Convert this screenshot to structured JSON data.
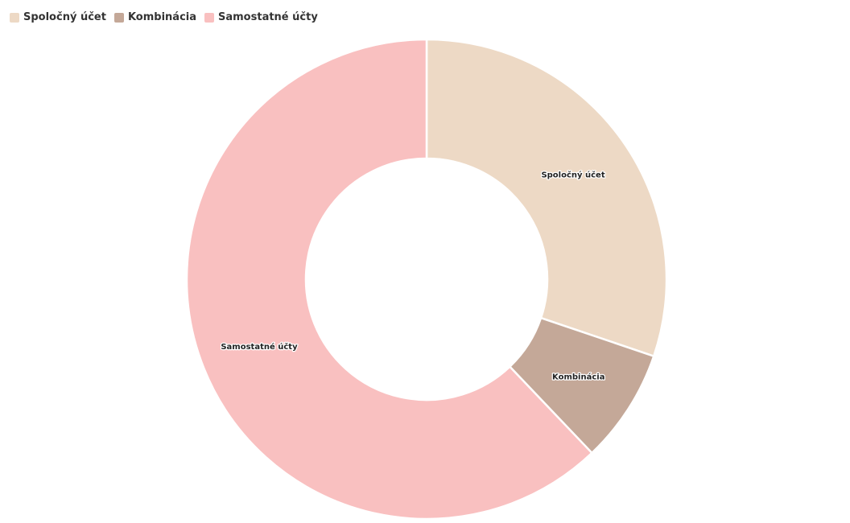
{
  "chart_data": {
    "type": "pie",
    "donut": true,
    "categories": [
      "Spoločný účet",
      "Kombinácia",
      "Samostatné účty"
    ],
    "values": [
      30.2,
      7.7,
      62.1
    ],
    "colors": [
      "#EDD9C5",
      "#C4A898",
      "#F9C0C0"
    ],
    "legend": "top-left",
    "labels_inside": true
  }
}
